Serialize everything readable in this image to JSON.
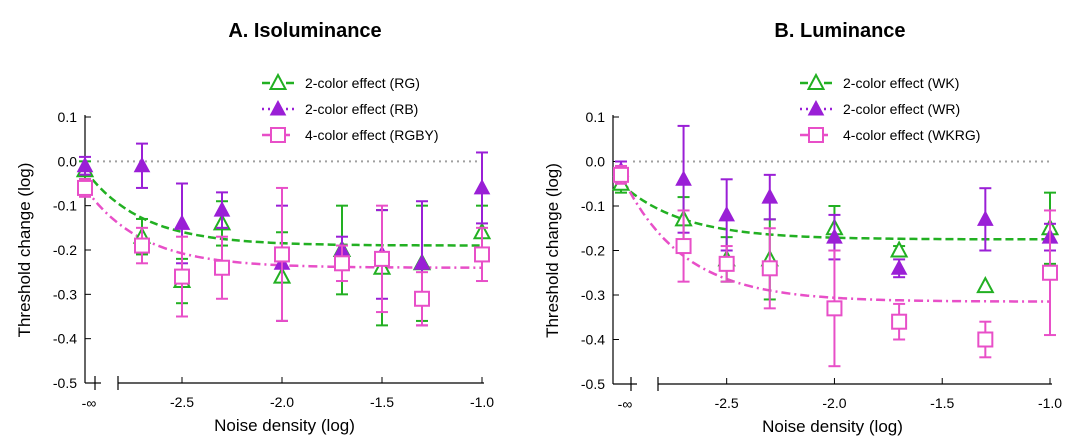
{
  "chart_data": [
    {
      "type": "scatter",
      "title": "A. Isoluminance",
      "xlabel": "Noise density (log)",
      "ylabel": "Threshold change (log)",
      "xlim": [
        -2.8,
        -1.0
      ],
      "ylim": [
        -0.5,
        0.1
      ],
      "x_ticks": [
        -2.5,
        -2.0,
        -1.5,
        -1.0
      ],
      "x_tick_labels": [
        "-2.5",
        "-2.0",
        "-1.5",
        "-1.0"
      ],
      "x_break_label": "-∞",
      "y_ticks": [
        -0.5,
        -0.4,
        -0.3,
        -0.2,
        -0.1,
        0.0,
        0.1
      ],
      "y_tick_labels": [
        "-0.5",
        "-0.4",
        "-0.3",
        "-0.2",
        "-0.1",
        "0.0",
        "0.1"
      ],
      "reference_line": 0.0,
      "legend_position": "top-right",
      "series": [
        {
          "name": "2-color effect (RG)",
          "color": "#22b022",
          "marker": "triangle-open",
          "line": "dashed",
          "inf_point": {
            "y": -0.02,
            "err": 0.02
          },
          "points": [
            {
              "x": -2.7,
              "y": -0.17,
              "err": 0.04
            },
            {
              "x": -2.5,
              "y": -0.27,
              "err": 0.05
            },
            {
              "x": -2.3,
              "y": -0.14,
              "err": 0.05
            },
            {
              "x": -2.0,
              "y": -0.26,
              "err": 0.1
            },
            {
              "x": -1.7,
              "y": -0.2,
              "err": 0.1
            },
            {
              "x": -1.5,
              "y": -0.24,
              "err": 0.13
            },
            {
              "x": -1.3,
              "y": -0.23,
              "err": 0.13
            },
            {
              "x": -1.0,
              "y": -0.16,
              "err": 0.06
            }
          ],
          "fit_asymptote": -0.19
        },
        {
          "name": "2-color effect (RB)",
          "color": "#9a1fd6",
          "marker": "triangle-filled",
          "line": "dotted",
          "inf_point": {
            "y": -0.01,
            "err": 0.02
          },
          "points": [
            {
              "x": -2.7,
              "y": -0.01,
              "err": 0.05
            },
            {
              "x": -2.5,
              "y": -0.14,
              "err": 0.09
            },
            {
              "x": -2.3,
              "y": -0.11,
              "err": 0.04
            },
            {
              "x": -2.0,
              "y": -0.23,
              "err": 0.13
            },
            {
              "x": -1.7,
              "y": -0.2,
              "err": 0.03
            },
            {
              "x": -1.5,
              "y": -0.21,
              "err": 0.1
            },
            {
              "x": -1.3,
              "y": -0.23,
              "err": 0.14
            },
            {
              "x": -1.0,
              "y": -0.06,
              "err": 0.08
            }
          ]
        },
        {
          "name": "4-color effect (RGBY)",
          "color": "#e84fc8",
          "marker": "square-open",
          "line": "dash-dot",
          "inf_point": {
            "y": -0.06,
            "err": 0.02
          },
          "points": [
            {
              "x": -2.7,
              "y": -0.19,
              "err": 0.04
            },
            {
              "x": -2.5,
              "y": -0.26,
              "err": 0.09
            },
            {
              "x": -2.3,
              "y": -0.24,
              "err": 0.07
            },
            {
              "x": -2.0,
              "y": -0.21,
              "err": 0.15
            },
            {
              "x": -1.7,
              "y": -0.23,
              "err": 0.04
            },
            {
              "x": -1.5,
              "y": -0.22,
              "err": 0.12
            },
            {
              "x": -1.3,
              "y": -0.31,
              "err": 0.06
            },
            {
              "x": -1.0,
              "y": -0.21,
              "err": 0.06
            }
          ],
          "fit_asymptote": -0.24
        }
      ]
    },
    {
      "type": "scatter",
      "title": "B. Luminance",
      "xlabel": "Noise density (log)",
      "ylabel": "Threshold change (log)",
      "xlim": [
        -2.8,
        -1.0
      ],
      "ylim": [
        -0.5,
        0.1
      ],
      "x_ticks": [
        -2.5,
        -2.0,
        -1.5,
        -1.0
      ],
      "x_tick_labels": [
        "-2.5",
        "-2.0",
        "-1.5",
        "-1.0"
      ],
      "x_break_label": "-∞",
      "y_ticks": [
        -0.5,
        -0.4,
        -0.3,
        -0.2,
        -0.1,
        0.0,
        0.1
      ],
      "y_tick_labels": [
        "-0.5",
        "-0.4",
        "-0.3",
        "-0.2",
        "-0.1",
        "0.0",
        "0.1"
      ],
      "reference_line": 0.0,
      "legend_position": "top-right",
      "series": [
        {
          "name": "2-color effect (WK)",
          "color": "#22b022",
          "marker": "triangle-open",
          "line": "dashed",
          "inf_point": {
            "y": -0.05,
            "err": 0.02
          },
          "points": [
            {
              "x": -2.7,
              "y": -0.13,
              "err": 0.05
            },
            {
              "x": -2.5,
              "y": -0.22,
              "err": 0.05
            },
            {
              "x": -2.3,
              "y": -0.22,
              "err": 0.09
            },
            {
              "x": -2.0,
              "y": -0.15,
              "err": 0.05
            },
            {
              "x": -1.7,
              "y": -0.2,
              "err": 0.01
            },
            {
              "x": -1.3,
              "y": -0.28,
              "err": 0.0
            },
            {
              "x": -1.0,
              "y": -0.15,
              "err": 0.08
            }
          ],
          "fit_asymptote": -0.175
        },
        {
          "name": "2-color effect (WR)",
          "color": "#9a1fd6",
          "marker": "triangle-filled",
          "line": "dotted",
          "inf_point": {
            "y": -0.02,
            "err": 0.02
          },
          "points": [
            {
              "x": -2.7,
              "y": -0.04,
              "err": 0.12
            },
            {
              "x": -2.5,
              "y": -0.12,
              "err": 0.08
            },
            {
              "x": -2.3,
              "y": -0.08,
              "err": 0.05
            },
            {
              "x": -2.0,
              "y": -0.17,
              "err": 0.05
            },
            {
              "x": -1.7,
              "y": -0.24,
              "err": 0.02
            },
            {
              "x": -1.3,
              "y": -0.13,
              "err": 0.07
            },
            {
              "x": -1.0,
              "y": -0.17,
              "err": 0.03
            }
          ]
        },
        {
          "name": "4-color effect (WKRG)",
          "color": "#e84fc8",
          "marker": "square-open",
          "line": "dash-dot",
          "inf_point": {
            "y": -0.03,
            "err": 0.02
          },
          "points": [
            {
              "x": -2.7,
              "y": -0.19,
              "err": 0.08
            },
            {
              "x": -2.5,
              "y": -0.23,
              "err": 0.04
            },
            {
              "x": -2.3,
              "y": -0.24,
              "err": 0.09
            },
            {
              "x": -2.0,
              "y": -0.33,
              "err": 0.13
            },
            {
              "x": -1.7,
              "y": -0.36,
              "err": 0.04
            },
            {
              "x": -1.3,
              "y": -0.4,
              "err": 0.04
            },
            {
              "x": -1.0,
              "y": -0.25,
              "err": 0.14
            }
          ],
          "fit_asymptote": -0.315
        }
      ]
    }
  ]
}
